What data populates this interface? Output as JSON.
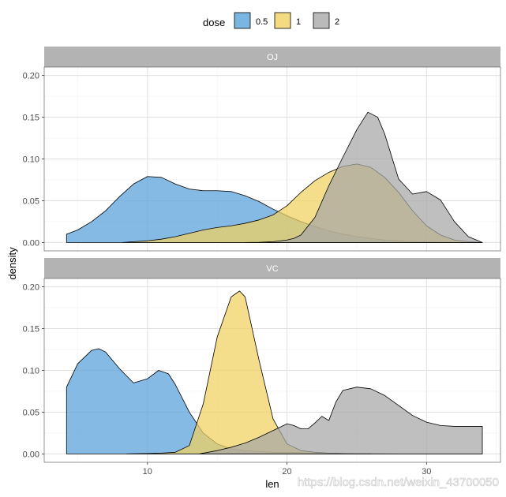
{
  "chart_data": {
    "type": "area",
    "xlabel": "len",
    "ylabel": "density",
    "xlim": [
      2.6,
      35.3
    ],
    "ylim": [
      -0.01,
      0.21
    ],
    "x_ticks": [
      10,
      20,
      30
    ],
    "y_ticks": [
      0.0,
      0.05,
      0.1,
      0.15,
      0.2
    ],
    "x_tick_labels": [
      "10",
      "20",
      "30"
    ],
    "y_tick_labels": [
      "0.00",
      "0.05",
      "0.10",
      "0.15",
      "0.20"
    ],
    "grid": true,
    "legend": {
      "title": "dose",
      "position": "top",
      "entries": [
        {
          "label": "0.5",
          "color": "#56a0d9"
        },
        {
          "label": "1",
          "color": "#f1d15e"
        },
        {
          "label": "2",
          "color": "#a6a6a6"
        }
      ]
    },
    "panels": [
      {
        "strip": "OJ",
        "series": [
          {
            "dose": "0.5",
            "x": [
              4.2,
              5,
              6,
              7,
              8,
              9,
              10,
              11,
              12,
              13,
              14,
              15,
              16,
              17,
              18,
              19,
              20,
              21,
              22,
              23,
              24,
              25,
              26,
              27,
              28,
              29,
              30,
              31,
              32,
              33,
              34
            ],
            "y": [
              0.01,
              0.015,
              0.025,
              0.038,
              0.055,
              0.07,
              0.079,
              0.078,
              0.07,
              0.064,
              0.062,
              0.062,
              0.061,
              0.056,
              0.049,
              0.04,
              0.032,
              0.025,
              0.019,
              0.014,
              0.01,
              0.007,
              0.005,
              0.003,
              0.002,
              0.001,
              0.0006,
              0.0003,
              0.0001,
              0.0,
              0.0
            ]
          },
          {
            "dose": "1",
            "x": [
              8.2,
              9,
              10,
              11,
              12,
              13,
              14,
              15,
              16,
              17,
              18,
              19,
              20,
              21,
              22,
              23,
              24,
              25,
              26,
              27,
              28,
              29,
              30,
              31,
              32,
              33,
              34
            ],
            "y": [
              0.0,
              0.001,
              0.002,
              0.004,
              0.007,
              0.011,
              0.015,
              0.018,
              0.02,
              0.023,
              0.027,
              0.033,
              0.044,
              0.06,
              0.074,
              0.084,
              0.091,
              0.094,
              0.09,
              0.078,
              0.06,
              0.038,
              0.02,
              0.009,
              0.003,
              0.001,
              0.0
            ]
          },
          {
            "dose": "2",
            "x": [
              17,
              18,
              19,
              20,
              20.5,
              21,
              22,
              23,
              24,
              25,
              25.8,
              26.5,
              27,
              28,
              29,
              30,
              31,
              32,
              33,
              34
            ],
            "y": [
              0.0,
              0.0002,
              0.001,
              0.003,
              0.005,
              0.009,
              0.03,
              0.068,
              0.102,
              0.135,
              0.156,
              0.15,
              0.13,
              0.076,
              0.058,
              0.061,
              0.051,
              0.025,
              0.007,
              0.0
            ]
          }
        ]
      },
      {
        "strip": "VC",
        "series": [
          {
            "dose": "0.5",
            "x": [
              4.2,
              5,
              6,
              6.5,
              7,
              8,
              9,
              10,
              10.8,
              11.5,
              12,
              13,
              14,
              15,
              16,
              17,
              18,
              19,
              20,
              21,
              22,
              23,
              24,
              25,
              26,
              27,
              28,
              29,
              30,
              31,
              32,
              33,
              34
            ],
            "y": [
              0.08,
              0.108,
              0.124,
              0.126,
              0.122,
              0.102,
              0.085,
              0.09,
              0.1,
              0.096,
              0.083,
              0.05,
              0.025,
              0.012,
              0.006,
              0.004,
              0.003,
              0.002,
              0.002,
              0.0015,
              0.001,
              0.001,
              0.0006,
              0.0003,
              0.0002,
              0.0001,
              0.0,
              0.0,
              0.0,
              0.0,
              0.0,
              0.0,
              0.0
            ]
          },
          {
            "dose": "1",
            "x": [
              8.5,
              9,
              10,
              11,
              12,
              13,
              14,
              15,
              16,
              16.6,
              17,
              18,
              19,
              20,
              21,
              22,
              23,
              24,
              25,
              26
            ],
            "y": [
              0.0,
              0.0002,
              0.0005,
              0.001,
              0.002,
              0.01,
              0.06,
              0.14,
              0.188,
              0.195,
              0.188,
              0.112,
              0.042,
              0.012,
              0.004,
              0.002,
              0.001,
              0.0005,
              0.0001,
              0.0
            ]
          },
          {
            "dose": "2",
            "x": [
              13.7,
              15,
              16,
              17,
              18,
              19,
              20,
              20.5,
              21,
              21.5,
              22,
              22.5,
              23,
              23.5,
              24,
              25,
              26,
              27,
              28,
              29,
              30,
              31,
              32,
              33,
              34
            ],
            "y": [
              0.0,
              0.004,
              0.008,
              0.013,
              0.02,
              0.028,
              0.036,
              0.034,
              0.03,
              0.03,
              0.037,
              0.045,
              0.04,
              0.062,
              0.076,
              0.08,
              0.078,
              0.07,
              0.058,
              0.046,
              0.038,
              0.034,
              0.033,
              0.033,
              0.033
            ]
          }
        ]
      }
    ]
  },
  "watermark": "https://blog.csdn.net/weixin_43700050"
}
